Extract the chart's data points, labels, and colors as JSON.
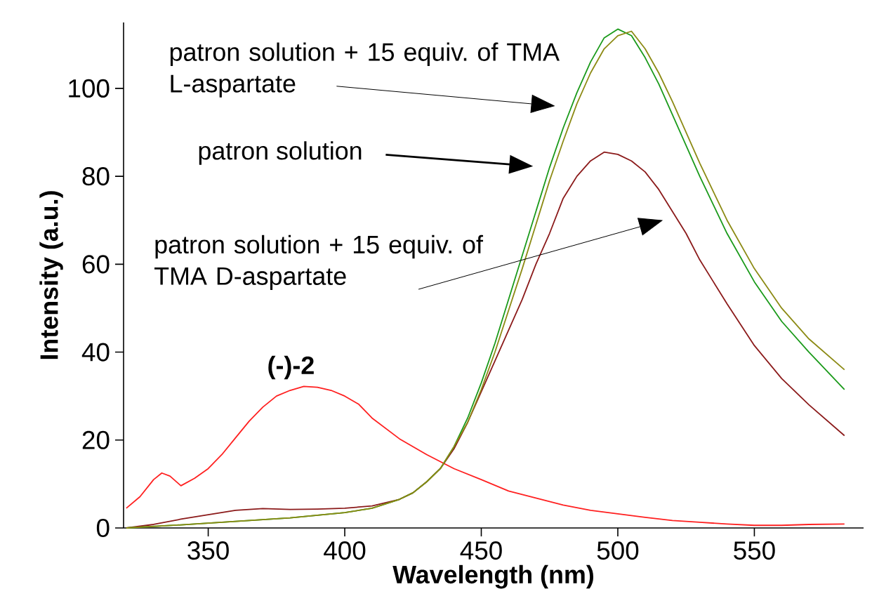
{
  "chart_data": {
    "type": "line",
    "xlabel": "Wavelength (nm)",
    "ylabel": "Intensity (a.u.)",
    "xlim": [
      319,
      590
    ],
    "ylim": [
      0,
      115
    ],
    "xticks": [
      350,
      400,
      450,
      500,
      550
    ],
    "yticks": [
      0,
      20,
      40,
      60,
      80,
      100
    ],
    "marker": "none",
    "line_style": "solid",
    "series": [
      {
        "color": "#ff2020",
        "x": [
          320,
          325,
          330,
          333,
          336,
          340,
          345,
          350,
          355,
          360,
          365,
          370,
          375,
          380,
          385,
          390,
          395,
          400,
          405,
          410,
          420,
          430,
          440,
          450,
          460,
          470,
          480,
          490,
          500,
          510,
          520,
          530,
          540,
          550,
          560,
          570,
          583
        ],
        "values": [
          4.5,
          7.1,
          11,
          12.5,
          11.8,
          9.6,
          11.3,
          13.5,
          16.7,
          20.5,
          24.3,
          27.5,
          30,
          31.3,
          32.2,
          32,
          31.3,
          30,
          28.2,
          25,
          20.3,
          16.7,
          13.5,
          11,
          8.4,
          6.8,
          5.2,
          4,
          3.2,
          2.4,
          1.7,
          1.3,
          0.9,
          0.6,
          0.6,
          0.8,
          0.9
        ]
      },
      {
        "color": "#8b1a1a",
        "x": [
          320,
          330,
          340,
          350,
          360,
          370,
          380,
          390,
          400,
          410,
          420,
          425,
          430,
          435,
          440,
          445,
          450,
          455,
          460,
          465,
          470,
          475,
          480,
          485,
          490,
          495,
          500,
          505,
          510,
          515,
          520,
          525,
          530,
          535,
          540,
          550,
          560,
          570,
          583
        ],
        "values": [
          0,
          0.8,
          2,
          3,
          4,
          4.4,
          4.2,
          4.3,
          4.5,
          5,
          6.5,
          8,
          10.5,
          13.5,
          18,
          24,
          31,
          38,
          45,
          52,
          60,
          67,
          75,
          80,
          83.5,
          85.5,
          85,
          83.5,
          81,
          77,
          72,
          67,
          61,
          56,
          51,
          41.5,
          34,
          28,
          21
        ]
      },
      {
        "color": "#1a9a1a",
        "x": [
          320,
          340,
          360,
          380,
          400,
          410,
          420,
          425,
          430,
          435,
          440,
          445,
          450,
          455,
          460,
          465,
          470,
          475,
          480,
          485,
          490,
          495,
          500,
          505,
          510,
          515,
          520,
          525,
          530,
          535,
          540,
          550,
          560,
          570,
          583
        ],
        "values": [
          0,
          0.7,
          1.5,
          2.3,
          3.5,
          4.5,
          6.5,
          8,
          10.5,
          13.5,
          18.5,
          25,
          33,
          42,
          52,
          62,
          72,
          82,
          91,
          99,
          106,
          111.5,
          113.5,
          112,
          107,
          101,
          94,
          87,
          80,
          73.5,
          67,
          56,
          47,
          40,
          31.5
        ]
      },
      {
        "color": "#8c8a14",
        "x": [
          320,
          340,
          360,
          380,
          400,
          410,
          420,
          425,
          430,
          435,
          440,
          445,
          450,
          455,
          460,
          465,
          470,
          475,
          480,
          485,
          490,
          495,
          500,
          505,
          510,
          515,
          520,
          525,
          530,
          535,
          540,
          550,
          560,
          570,
          583
        ],
        "values": [
          0,
          0.7,
          1.5,
          2.3,
          3.5,
          4.5,
          6.5,
          8,
          10.5,
          13.5,
          18.5,
          24,
          31.5,
          40,
          49.5,
          59,
          69,
          79,
          88,
          96.5,
          103.5,
          109,
          112,
          113,
          109,
          103.5,
          97,
          90,
          83,
          76.5,
          70,
          59,
          50,
          43,
          36
        ]
      }
    ],
    "annotations": [
      "patron solution + 15 equiv. of TMA L-aspartate",
      "patron solution",
      "patron solution + 15 equiv. of TMA D-aspartate",
      "(-)-2"
    ]
  }
}
